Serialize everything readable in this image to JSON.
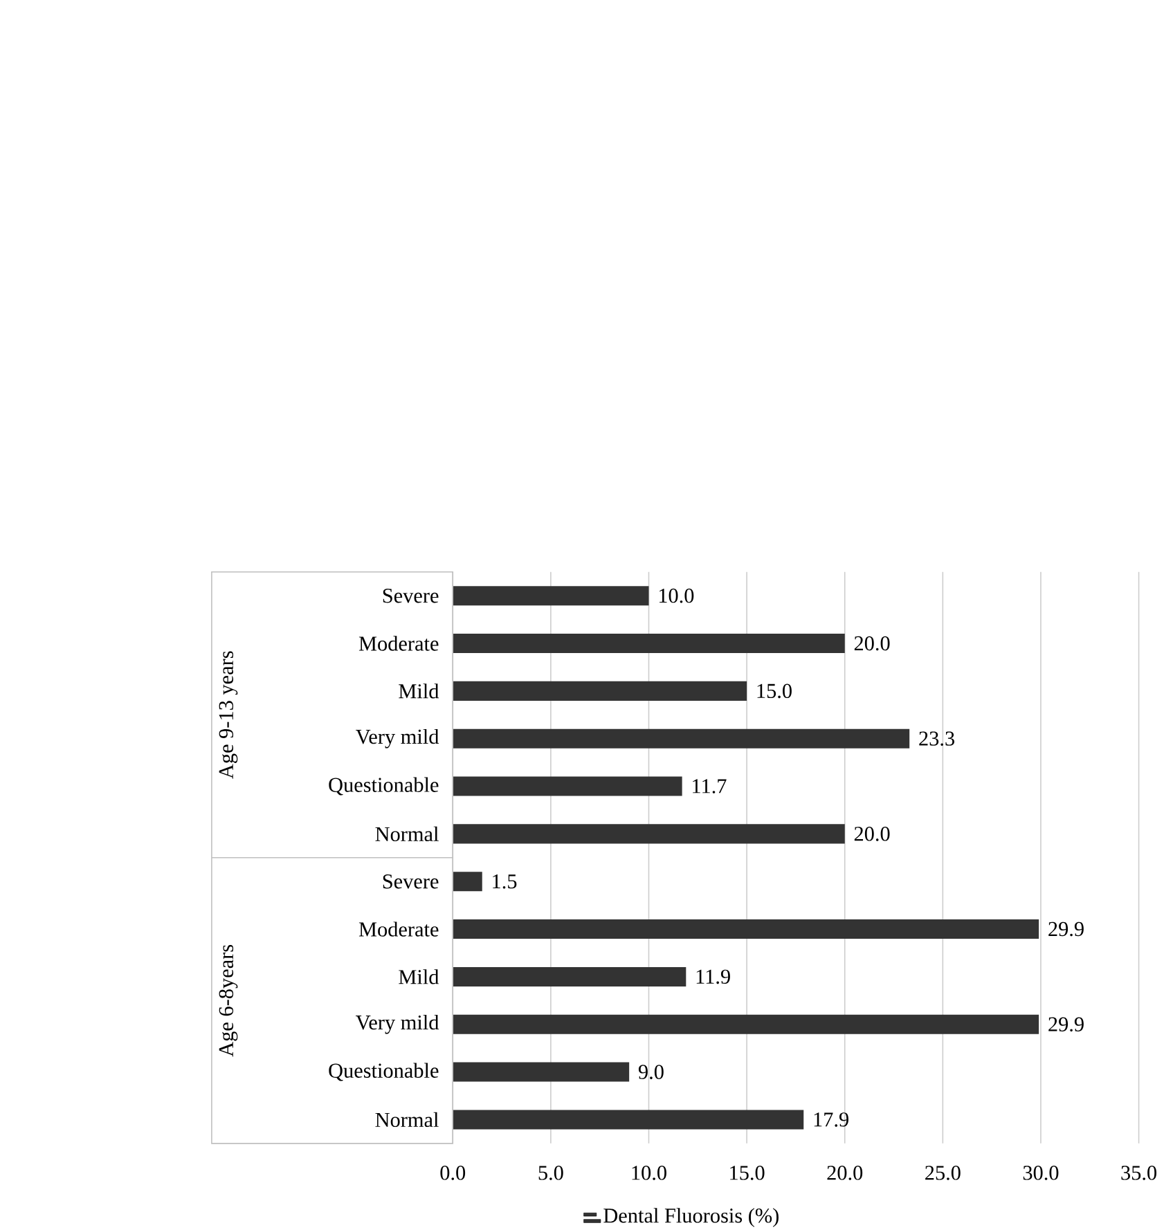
{
  "chart_data": {
    "type": "bar",
    "orientation": "horizontal",
    "categories": [
      "Severe",
      "Moderate",
      "Mild",
      "Very mild",
      "Questionable",
      "Normal",
      "Severe",
      "Moderate",
      "Mild",
      "Very mild",
      "Questionable",
      "Normal"
    ],
    "series": [
      {
        "name": "Dental Fluorosis (%)",
        "color": "#333333",
        "values": [
          10.0,
          20.0,
          15.0,
          23.3,
          11.7,
          20.0,
          1.5,
          29.9,
          11.9,
          29.9,
          9.0,
          17.9
        ],
        "value_labels": [
          "10.0",
          "20.0",
          "15.0",
          "23.3",
          "11.7",
          "20.0",
          "1.5",
          "29.9",
          "11.9",
          "29.9",
          "9.0",
          "17.9"
        ]
      }
    ],
    "annotations": [
      "Age 9-13 years",
      "Age 6-8years"
    ],
    "xlim": [
      0,
      35
    ],
    "xticks": [
      {
        "value": 0,
        "label": "0.0"
      },
      {
        "value": 5,
        "label": "5.0"
      },
      {
        "value": 10,
        "label": "10.0"
      },
      {
        "value": 15,
        "label": "15.0"
      },
      {
        "value": 20,
        "label": "20.0"
      },
      {
        "value": 25,
        "label": "25.0"
      },
      {
        "value": 30,
        "label": "30.0"
      },
      {
        "value": 35,
        "label": "35.0"
      }
    ],
    "grid": "x",
    "legend": "bottom"
  }
}
